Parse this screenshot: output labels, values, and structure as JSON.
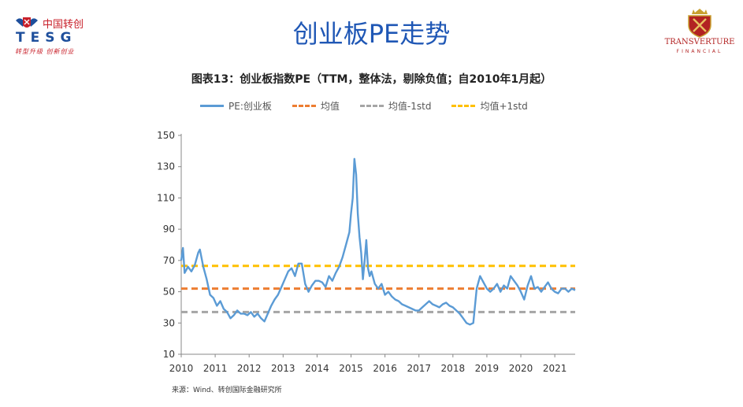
{
  "header": {
    "title": "创业板PE走势",
    "left_logo": {
      "name_cn": "中国转创",
      "name_en": "TESG",
      "slogan": "转型升级 创新创业"
    },
    "right_logo": {
      "name": "TRANSVERTURE",
      "sub": "FINANCIAL"
    }
  },
  "colors": {
    "pe": "#5b9bd5",
    "mean": "#ed7d31",
    "minus": "#a5a5a5",
    "plus": "#ffc000"
  },
  "chart_data": {
    "type": "line",
    "title": "图表13：创业板指数PE（TTM，整体法，剔除负值；自2010年1月起）",
    "xlabel": "",
    "ylabel": "",
    "xlim": [
      2010,
      2021.6
    ],
    "ylim": [
      10,
      150
    ],
    "x_ticks": [
      "2010",
      "2011",
      "2012",
      "2013",
      "2014",
      "2015",
      "2016",
      "2017",
      "2018",
      "2019",
      "2020",
      "2021"
    ],
    "y_ticks": [
      "10",
      "30",
      "50",
      "70",
      "90",
      "110",
      "130",
      "150"
    ],
    "grid": false,
    "legend_position": "top",
    "series": [
      {
        "name": "PE:创业板",
        "style": "solid",
        "x": [
          2010.0,
          2010.05,
          2010.1,
          2010.2,
          2010.3,
          2010.4,
          2010.5,
          2010.55,
          2010.65,
          2010.75,
          2010.85,
          2010.95,
          2011.05,
          2011.15,
          2011.25,
          2011.35,
          2011.45,
          2011.55,
          2011.65,
          2011.75,
          2011.85,
          2011.95,
          2012.05,
          2012.15,
          2012.25,
          2012.35,
          2012.45,
          2012.55,
          2012.65,
          2012.75,
          2012.85,
          2012.95,
          2013.05,
          2013.15,
          2013.25,
          2013.35,
          2013.45,
          2013.55,
          2013.65,
          2013.75,
          2013.85,
          2013.95,
          2014.05,
          2014.15,
          2014.25,
          2014.35,
          2014.45,
          2014.55,
          2014.65,
          2014.75,
          2014.85,
          2014.95,
          2015.0,
          2015.05,
          2015.1,
          2015.15,
          2015.2,
          2015.25,
          2015.3,
          2015.35,
          2015.4,
          2015.45,
          2015.5,
          2015.55,
          2015.6,
          2015.7,
          2015.8,
          2015.9,
          2016.0,
          2016.1,
          2016.2,
          2016.3,
          2016.4,
          2016.5,
          2016.6,
          2016.7,
          2016.8,
          2016.9,
          2017.0,
          2017.1,
          2017.2,
          2017.3,
          2017.4,
          2017.5,
          2017.6,
          2017.7,
          2017.8,
          2017.9,
          2018.0,
          2018.1,
          2018.2,
          2018.3,
          2018.4,
          2018.5,
          2018.6,
          2018.7,
          2018.8,
          2018.9,
          2019.0,
          2019.1,
          2019.2,
          2019.3,
          2019.4,
          2019.5,
          2019.6,
          2019.7,
          2019.8,
          2019.9,
          2020.0,
          2020.1,
          2020.2,
          2020.3,
          2020.4,
          2020.5,
          2020.6,
          2020.7,
          2020.8,
          2020.9,
          2021.0,
          2021.1,
          2021.2,
          2021.3,
          2021.4,
          2021.5,
          2021.6
        ],
        "y": [
          70,
          78,
          62,
          66,
          63,
          67,
          75,
          77,
          66,
          58,
          48,
          46,
          41,
          44,
          39,
          37,
          33,
          35,
          38,
          36,
          36,
          35,
          37,
          34,
          36,
          33,
          31,
          36,
          41,
          45,
          48,
          53,
          58,
          63,
          65,
          60,
          68,
          68,
          55,
          50,
          54,
          57,
          57,
          56,
          53,
          60,
          57,
          62,
          66,
          72,
          80,
          88,
          100,
          110,
          135,
          125,
          100,
          85,
          75,
          58,
          70,
          83,
          65,
          60,
          63,
          55,
          52,
          55,
          48,
          50,
          47,
          45,
          44,
          42,
          41,
          40,
          39,
          38,
          38,
          40,
          42,
          44,
          42,
          41,
          40,
          42,
          43,
          41,
          40,
          38,
          36,
          33,
          30,
          29,
          30,
          52,
          60,
          56,
          52,
          50,
          52,
          55,
          50,
          54,
          52,
          60,
          57,
          54,
          50,
          45,
          54,
          60,
          52,
          53,
          50,
          53,
          56,
          52,
          50,
          49,
          52,
          52,
          50,
          52,
          51
        ]
      },
      {
        "name": "均值",
        "style": "dashed",
        "x": [
          2010,
          2021.6
        ],
        "y": [
          52,
          52
        ]
      },
      {
        "name": "均值-1std",
        "style": "dashed",
        "x": [
          2010,
          2021.6
        ],
        "y": [
          37,
          37
        ]
      },
      {
        "name": "均值+1std",
        "style": "dashed",
        "x": [
          2010,
          2021.6
        ],
        "y": [
          66.5,
          66.5
        ]
      }
    ],
    "source": "来源：Wind、转创国际金融研究所"
  }
}
